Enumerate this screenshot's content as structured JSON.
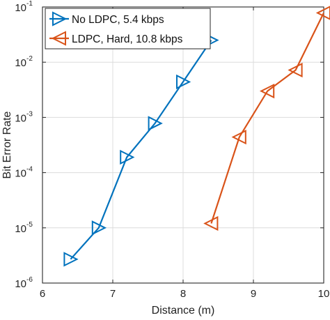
{
  "chart_data": {
    "type": "line",
    "title": "",
    "xlabel": "Distance (m)",
    "ylabel": "Bit Error Rate",
    "xlim": [
      6,
      10
    ],
    "ylim": [
      1e-06,
      0.1
    ],
    "yscale": "log",
    "grid": true,
    "legend_position": "top-left",
    "x_ticks": [
      {
        "value": 6,
        "label": "6"
      },
      {
        "value": 7,
        "label": "7"
      },
      {
        "value": 8,
        "label": "8"
      },
      {
        "value": 9,
        "label": "9"
      },
      {
        "value": 10,
        "label": "10"
      }
    ],
    "y_ticks": [
      {
        "value": 1e-06,
        "base": "10",
        "exp": "-6"
      },
      {
        "value": 1e-05,
        "base": "10",
        "exp": "-5"
      },
      {
        "value": 0.0001,
        "base": "10",
        "exp": "-4"
      },
      {
        "value": 0.001,
        "base": "10",
        "exp": "-3"
      },
      {
        "value": 0.01,
        "base": "10",
        "exp": "-2"
      },
      {
        "value": 0.1,
        "base": "10",
        "exp": "-1"
      }
    ],
    "series": [
      {
        "name": "No LDPC, 5.4 kbps",
        "color": "#0072BD",
        "marker": "triangle-right",
        "x": [
          6.4,
          6.8,
          7.2,
          7.6,
          8.0,
          8.4
        ],
        "y": [
          2.7e-06,
          1e-05,
          0.00019,
          0.00078,
          0.0044,
          0.025
        ]
      },
      {
        "name": "LDPC, Hard, 10.8 kbps",
        "color": "#D95319",
        "marker": "triangle-left",
        "x": [
          8.4,
          8.8,
          9.2,
          9.6,
          10.0
        ],
        "y": [
          1.2e-05,
          0.00044,
          0.003,
          0.0072,
          0.078
        ]
      }
    ]
  }
}
